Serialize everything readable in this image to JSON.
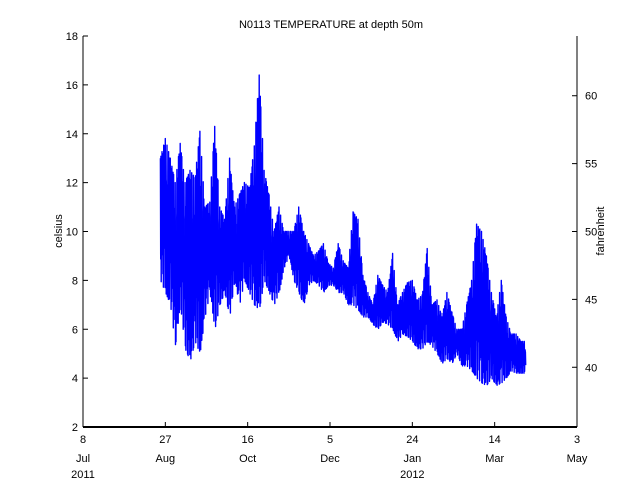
{
  "chart_data": {
    "type": "line",
    "title": "N0113 TEMPERATURE at depth 50m",
    "ylabel": "celsius",
    "y2label": "fahrenheit",
    "ylim": [
      2,
      18
    ],
    "yticks": [
      2,
      4,
      6,
      8,
      10,
      12,
      14,
      16,
      18
    ],
    "y2lim": [
      35.6,
      64.4
    ],
    "y2ticks": [
      40,
      45,
      50,
      55,
      60
    ],
    "xlim": [
      "2011-07-08",
      "2012-05-03"
    ],
    "xticks": [
      {
        "date": "2011-07-08",
        "day": "8",
        "month": "Jul",
        "year": "2011"
      },
      {
        "date": "2011-08-27",
        "day": "27",
        "month": "Aug",
        "year": ""
      },
      {
        "date": "2011-10-16",
        "day": "16",
        "month": "Oct",
        "year": ""
      },
      {
        "date": "2011-12-05",
        "day": "5",
        "month": "Dec",
        "year": ""
      },
      {
        "date": "2012-01-24",
        "day": "24",
        "month": "Jan",
        "year": "2012"
      },
      {
        "date": "2012-03-14",
        "day": "14",
        "month": "Mar",
        "year": ""
      },
      {
        "date": "2012-05-03",
        "day": "3",
        "month": "May",
        "year": ""
      }
    ],
    "grid": false,
    "color": "#0000ff",
    "series": [
      {
        "x": [
          "2011-08-24",
          "2011-08-27",
          "2011-08-30",
          "2011-09-02",
          "2011-09-05",
          "2011-09-08",
          "2011-09-11",
          "2011-09-14",
          "2011-09-17",
          "2011-09-20",
          "2011-09-23",
          "2011-09-26",
          "2011-09-29",
          "2011-10-02",
          "2011-10-05",
          "2011-10-08",
          "2011-10-11",
          "2011-10-14",
          "2011-10-17",
          "2011-10-20",
          "2011-10-23",
          "2011-10-26",
          "2011-10-29",
          "2011-11-01",
          "2011-11-04",
          "2011-11-07",
          "2011-11-10",
          "2011-11-13",
          "2011-11-16",
          "2011-11-19",
          "2011-11-22",
          "2011-11-25",
          "2011-11-28",
          "2011-12-01",
          "2011-12-04",
          "2011-12-07",
          "2011-12-10",
          "2011-12-13",
          "2011-12-16",
          "2011-12-19",
          "2011-12-22",
          "2011-12-25",
          "2011-12-28",
          "2011-12-31",
          "2012-01-03",
          "2012-01-06",
          "2012-01-09",
          "2012-01-12",
          "2012-01-15",
          "2012-01-18",
          "2012-01-21",
          "2012-01-24",
          "2012-01-27",
          "2012-01-30",
          "2012-02-02",
          "2012-02-05",
          "2012-02-08",
          "2012-02-11",
          "2012-02-14",
          "2012-02-17",
          "2012-02-20",
          "2012-02-23",
          "2012-02-26",
          "2012-02-29",
          "2012-03-03",
          "2012-03-06",
          "2012-03-09",
          "2012-03-12",
          "2012-03-15",
          "2012-03-18",
          "2012-03-21",
          "2012-03-24",
          "2012-03-27",
          "2012-03-30",
          "2012-04-02"
        ],
        "min": [
          8.0,
          7.5,
          7.0,
          5.3,
          7.0,
          5.2,
          4.7,
          5.5,
          5.0,
          6.5,
          7.5,
          6.0,
          7.0,
          7.5,
          6.5,
          8.0,
          7.0,
          8.0,
          7.5,
          7.0,
          6.8,
          8.0,
          7.5,
          7.0,
          7.5,
          8.5,
          9.0,
          8.0,
          7.5,
          7.0,
          7.8,
          8.0,
          7.8,
          7.5,
          7.8,
          7.8,
          7.5,
          7.5,
          7.0,
          7.0,
          6.8,
          6.5,
          6.5,
          6.2,
          6.0,
          6.3,
          6.2,
          6.0,
          5.5,
          5.8,
          5.7,
          5.5,
          5.2,
          5.2,
          5.5,
          5.3,
          5.0,
          4.6,
          4.8,
          4.6,
          5.0,
          4.5,
          4.5,
          4.3,
          4.0,
          3.8,
          3.7,
          4.0,
          3.7,
          3.8,
          4.0,
          4.3,
          4.2,
          4.2,
          4.2
        ],
        "max": [
          13.0,
          13.8,
          13.0,
          12.0,
          13.6,
          12.0,
          12.5,
          12.2,
          14.1,
          11.0,
          11.2,
          14.3,
          11.0,
          10.5,
          13.0,
          11.0,
          11.5,
          12.0,
          11.8,
          13.5,
          16.4,
          12.5,
          11.5,
          10.0,
          11.0,
          10.0,
          10.0,
          10.0,
          11.0,
          10.0,
          9.5,
          9.0,
          9.2,
          9.5,
          8.7,
          8.5,
          9.5,
          8.8,
          8.5,
          10.8,
          10.5,
          8.2,
          7.5,
          7.0,
          8.2,
          7.8,
          7.5,
          9.1,
          7.0,
          7.5,
          7.9,
          8.0,
          7.2,
          7.4,
          9.3,
          7.0,
          7.2,
          6.5,
          7.5,
          6.7,
          6.0,
          6.0,
          7.0,
          8.0,
          10.3,
          10.0,
          9.0,
          7.5,
          6.5,
          8.0,
          6.5,
          5.8,
          5.8,
          5.5,
          5.5
        ]
      }
    ]
  },
  "colors": {
    "line": "#0000ff",
    "axis": "#000000",
    "background": "#ffffff"
  }
}
